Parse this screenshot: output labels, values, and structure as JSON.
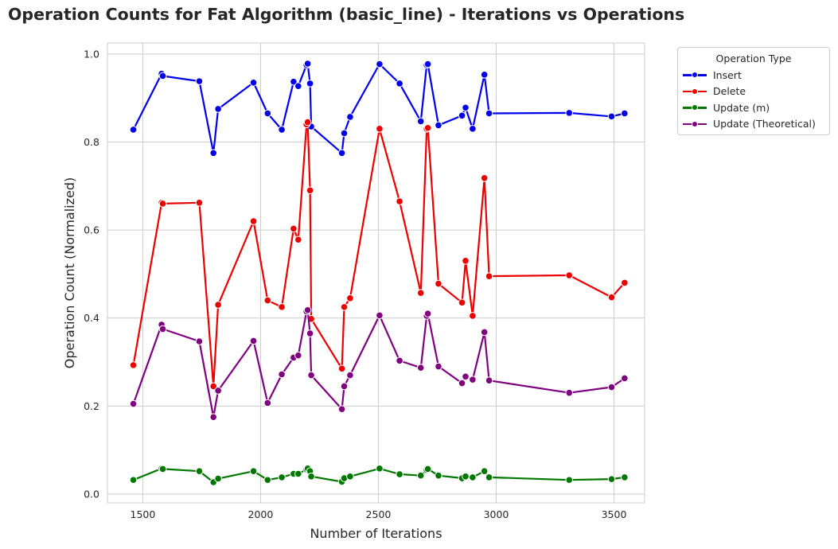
{
  "chart_data": {
    "type": "line",
    "title": "Operation Counts for Fat Algorithm (basic_line) - Iterations vs Operations",
    "xlabel": "Number of Iterations",
    "ylabel": "Operation Count (Normalized)",
    "xlim": [
      1350,
      3630
    ],
    "ylim": [
      -0.02,
      1.025
    ],
    "x_ticks": [
      1500,
      2000,
      2500,
      3000,
      3500
    ],
    "y_ticks": [
      0.0,
      0.2,
      0.4,
      0.6,
      0.8,
      1.0
    ],
    "grid": true,
    "legend": {
      "title": "Operation Type",
      "placement": "outside-top-right"
    },
    "x": [
      1460,
      1580,
      1585,
      1740,
      1800,
      1820,
      1970,
      2030,
      2090,
      2140,
      2160,
      2195,
      2200,
      2210,
      2215,
      2345,
      2355,
      2380,
      2505,
      2590,
      2680,
      2705,
      2710,
      2755,
      2855,
      2870,
      2900,
      2950,
      2970,
      3310,
      3490,
      3545
    ],
    "series": [
      {
        "name": "Insert",
        "color": "#0000ee",
        "values": [
          0.828,
          0.955,
          0.95,
          0.938,
          0.775,
          0.875,
          0.935,
          0.865,
          0.828,
          0.937,
          0.927,
          0.975,
          0.978,
          0.933,
          0.835,
          0.775,
          0.82,
          0.857,
          0.977,
          0.933,
          0.847,
          0.975,
          0.977,
          0.838,
          0.86,
          0.878,
          0.83,
          0.953,
          0.865,
          0.866,
          0.858,
          0.865
        ]
      },
      {
        "name": "Delete",
        "color": "#ee0000",
        "values": [
          0.293,
          0.662,
          0.66,
          0.662,
          0.245,
          0.43,
          0.62,
          0.44,
          0.425,
          0.603,
          0.578,
          0.84,
          0.845,
          0.69,
          0.398,
          0.285,
          0.425,
          0.445,
          0.83,
          0.665,
          0.457,
          0.83,
          0.832,
          0.478,
          0.435,
          0.53,
          0.405,
          0.718,
          0.495,
          0.497,
          0.447,
          0.48
        ]
      },
      {
        "name": "Update (m)",
        "color": "#007800",
        "values": [
          0.032,
          0.058,
          0.057,
          0.052,
          0.027,
          0.035,
          0.052,
          0.032,
          0.038,
          0.046,
          0.046,
          0.056,
          0.058,
          0.052,
          0.04,
          0.028,
          0.036,
          0.04,
          0.058,
          0.045,
          0.042,
          0.055,
          0.057,
          0.042,
          0.036,
          0.04,
          0.038,
          0.052,
          0.038,
          0.032,
          0.034,
          0.038
        ]
      },
      {
        "name": "Update (Theoretical)",
        "color": "#800080",
        "values": [
          0.205,
          0.385,
          0.375,
          0.347,
          0.175,
          0.235,
          0.348,
          0.207,
          0.272,
          0.31,
          0.315,
          0.415,
          0.418,
          0.365,
          0.27,
          0.193,
          0.245,
          0.27,
          0.406,
          0.303,
          0.287,
          0.405,
          0.41,
          0.29,
          0.252,
          0.267,
          0.26,
          0.368,
          0.258,
          0.23,
          0.243,
          0.263
        ]
      }
    ]
  }
}
